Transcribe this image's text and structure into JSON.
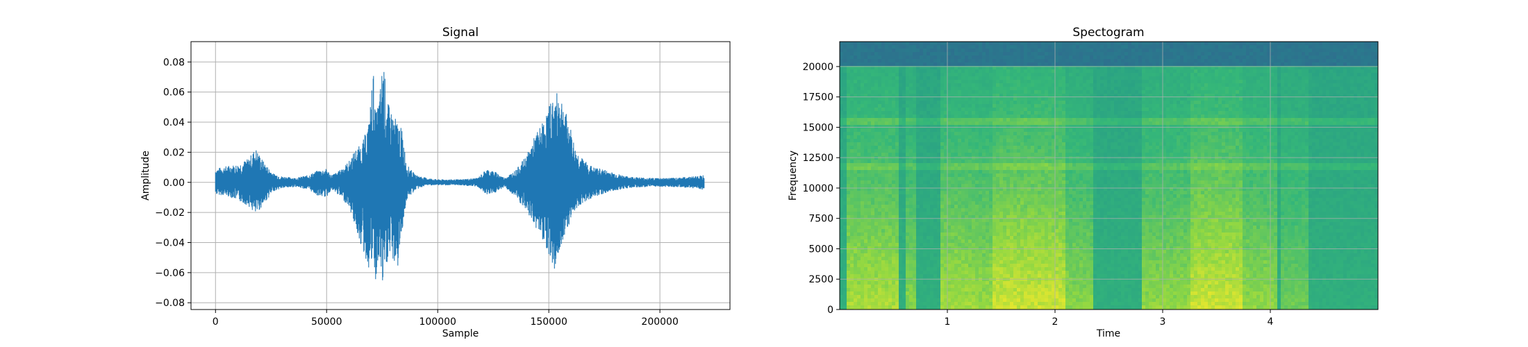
{
  "chart_data": [
    {
      "type": "line",
      "title": "Signal",
      "xlabel": "Sample",
      "ylabel": "Amplitude",
      "xlim": [
        -11025,
        231525
      ],
      "ylim": [
        -0.0845,
        0.0935
      ],
      "grid": true,
      "x_ticks": [
        0,
        50000,
        100000,
        150000,
        200000
      ],
      "x_tick_labels": [
        "0",
        "50000",
        "100000",
        "150000",
        "200000"
      ],
      "y_ticks": [
        -0.08,
        -0.06,
        -0.04,
        -0.02,
        0.0,
        0.02,
        0.04,
        0.06,
        0.08
      ],
      "y_tick_labels": [
        "−0.08",
        "−0.06",
        "−0.04",
        "−0.02",
        "0.00",
        "0.02",
        "0.04",
        "0.06",
        "0.08"
      ],
      "line_color": "#1f77b4",
      "series": [
        {
          "x": [
            0,
            5000,
            10000,
            15000,
            18000,
            22000,
            26000,
            30000,
            36000,
            42000,
            46000,
            50000,
            52000,
            55000,
            60000,
            63000,
            66000,
            69000,
            71000,
            72000,
            74000,
            75500,
            77000,
            79000,
            82000,
            84000,
            86000,
            90000,
            95000,
            100000,
            110000,
            118000,
            122000,
            126000,
            130000,
            135000,
            140000,
            144000,
            148000,
            151000,
            153000,
            155000,
            157000,
            160000,
            162000,
            165000,
            170000,
            174000,
            178000,
            185000,
            195000,
            205000,
            215000,
            220000
          ],
          "upper": [
            0.009,
            0.011,
            0.012,
            0.016,
            0.023,
            0.013,
            0.006,
            0.004,
            0.003,
            0.005,
            0.008,
            0.009,
            0.005,
            0.007,
            0.014,
            0.022,
            0.026,
            0.04,
            0.076,
            0.045,
            0.06,
            0.085,
            0.055,
            0.048,
            0.04,
            0.035,
            0.012,
            0.005,
            0.003,
            0.002,
            0.002,
            0.003,
            0.009,
            0.007,
            0.003,
            0.008,
            0.018,
            0.032,
            0.042,
            0.055,
            0.058,
            0.062,
            0.05,
            0.035,
            0.022,
            0.016,
            0.01,
            0.009,
            0.007,
            0.004,
            0.003,
            0.003,
            0.004,
            0.005
          ],
          "lower": [
            -0.008,
            -0.009,
            -0.012,
            -0.016,
            -0.022,
            -0.014,
            -0.006,
            -0.004,
            -0.003,
            -0.005,
            -0.009,
            -0.01,
            -0.005,
            -0.008,
            -0.016,
            -0.03,
            -0.045,
            -0.058,
            -0.054,
            -0.068,
            -0.052,
            -0.076,
            -0.055,
            -0.05,
            -0.058,
            -0.032,
            -0.012,
            -0.005,
            -0.002,
            -0.002,
            -0.002,
            -0.003,
            -0.008,
            -0.007,
            -0.003,
            -0.01,
            -0.02,
            -0.03,
            -0.04,
            -0.052,
            -0.06,
            -0.045,
            -0.035,
            -0.025,
            -0.018,
            -0.014,
            -0.01,
            -0.008,
            -0.006,
            -0.004,
            -0.003,
            -0.003,
            -0.004,
            -0.005
          ]
        }
      ]
    },
    {
      "type": "heatmap",
      "title": "Spectogram",
      "xlabel": "Time",
      "ylabel": "Frequency",
      "xlim": [
        0.0,
        5.0
      ],
      "ylim": [
        0,
        22050
      ],
      "grid": true,
      "x_ticks": [
        1,
        2,
        3,
        4
      ],
      "x_tick_labels": [
        "1",
        "2",
        "3",
        "4"
      ],
      "y_ticks": [
        0,
        2500,
        5000,
        7500,
        10000,
        12500,
        15000,
        17500,
        20000
      ],
      "y_tick_labels": [
        "0",
        "2500",
        "5000",
        "7500",
        "10000",
        "12500",
        "15000",
        "17500",
        "20000"
      ],
      "colormap": [
        "#31688e",
        "#21918c",
        "#35b779",
        "#90d743",
        "#e0e62f"
      ],
      "cutoff_frequency": 20000,
      "bands": [
        {
          "freq": 15600,
          "intensity": 0.55
        },
        {
          "freq": 11800,
          "intensity": 0.45
        }
      ],
      "active_segments": [
        {
          "start": 0.05,
          "end": 0.55,
          "intensity": 0.75
        },
        {
          "start": 0.62,
          "end": 0.72,
          "intensity": 0.55
        },
        {
          "start": 0.95,
          "end": 1.25,
          "intensity": 0.7
        },
        {
          "start": 1.25,
          "end": 1.42,
          "intensity": 0.65
        },
        {
          "start": 1.42,
          "end": 2.1,
          "intensity": 0.95
        },
        {
          "start": 2.1,
          "end": 2.35,
          "intensity": 0.55
        },
        {
          "start": 2.8,
          "end": 3.25,
          "intensity": 0.6
        },
        {
          "start": 3.25,
          "end": 3.75,
          "intensity": 0.95
        },
        {
          "start": 3.75,
          "end": 4.05,
          "intensity": 0.6
        },
        {
          "start": 4.1,
          "end": 4.35,
          "intensity": 0.4
        }
      ]
    }
  ]
}
